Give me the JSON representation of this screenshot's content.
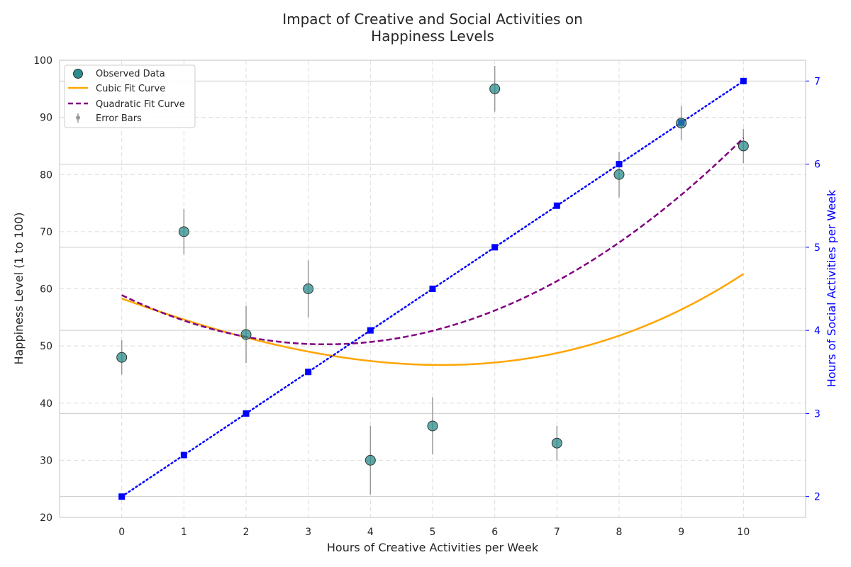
{
  "chart_data": {
    "type": "scatter",
    "title_line1": "Impact of Creative and Social Activities on",
    "title_line2": "Happiness Levels",
    "xlabel": "Hours of Creative Activities per Week",
    "ylabel": "Happiness Level (1 to 100)",
    "ylabel_right": "Hours of Social Activities per Week",
    "xlim": [
      -1,
      11
    ],
    "ylim": [
      20,
      100
    ],
    "ylim_right": [
      1.75,
      7.25
    ],
    "x_ticks": [
      "0",
      "1",
      "2",
      "3",
      "4",
      "5",
      "6",
      "7",
      "8",
      "9",
      "10"
    ],
    "y_ticks": [
      "20",
      "30",
      "40",
      "50",
      "60",
      "70",
      "80",
      "90",
      "100"
    ],
    "y_ticks_right": [
      "2",
      "3",
      "4",
      "5",
      "6",
      "7"
    ],
    "grid": true,
    "legend_position": "top-left",
    "colors": {
      "observed_fill": "#2a8c8c",
      "cubic": "#ffa500",
      "quadratic": "#800080",
      "social": "#0000ff",
      "error_bars": "#999999",
      "grid": "#dddddd",
      "axes": "#cccccc"
    },
    "series": [
      {
        "name": "Observed Data",
        "x": [
          0,
          1,
          2,
          3,
          4,
          5,
          6,
          7,
          8,
          9,
          10
        ],
        "y": [
          48,
          70,
          52,
          60,
          30,
          36,
          95,
          33,
          80,
          89,
          85
        ],
        "y_err": [
          3,
          4,
          5,
          5,
          6,
          5,
          4,
          3,
          4,
          3,
          3
        ]
      },
      {
        "name": "Cubic Fit Curve",
        "x_range": [
          0,
          10
        ],
        "coefficients_cubic_to_constant": [
          0.0236,
          0.1968,
          -3.8975,
          58.3
        ]
      },
      {
        "name": "Quadratic Fit Curve",
        "x_range": [
          0,
          10
        ],
        "coefficients_quadratic_to_constant": [
          0.8,
          -5.25,
          58.9
        ]
      },
      {
        "name": "Hours of Social Activities per Week",
        "x": [
          0,
          1,
          2,
          3,
          4,
          5,
          6,
          7,
          8,
          9,
          10
        ],
        "y": [
          2,
          2.5,
          3,
          3.5,
          4,
          4.5,
          5,
          5.5,
          6,
          6.5,
          7
        ]
      }
    ],
    "legend": [
      "Observed Data",
      "Cubic Fit Curve",
      "Quadratic Fit Curve",
      "Error Bars"
    ]
  }
}
